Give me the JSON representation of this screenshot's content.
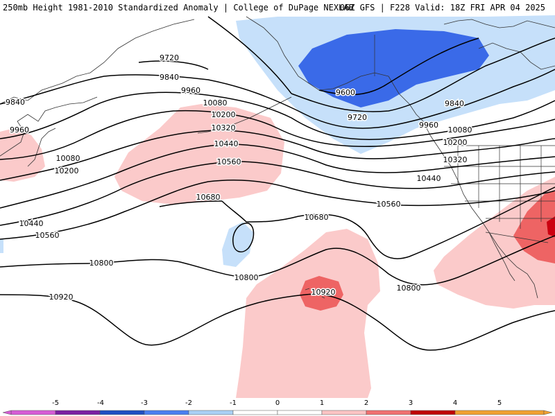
{
  "header": {
    "left": "250mb Height 1981-2010 Standardized Anomaly | College of DuPage NEXLAB",
    "right": "06Z GFS | F228 Valid: 18Z FRI APR 04 2025"
  },
  "contour_labels": [
    {
      "text": "9720"
    },
    {
      "text": "9840"
    },
    {
      "text": "9960"
    },
    {
      "text": "9840"
    },
    {
      "text": "9960"
    },
    {
      "text": "10080"
    },
    {
      "text": "10200"
    },
    {
      "text": "10320"
    },
    {
      "text": "10440"
    },
    {
      "text": "10560"
    },
    {
      "text": "10680"
    },
    {
      "text": "10440"
    },
    {
      "text": "10560"
    },
    {
      "text": "10800"
    },
    {
      "text": "10800"
    },
    {
      "text": "10920"
    },
    {
      "text": "10920"
    },
    {
      "text": "10680"
    },
    {
      "text": "10800"
    },
    {
      "text": "9600"
    },
    {
      "text": "9720"
    },
    {
      "text": "9840"
    },
    {
      "text": "9960"
    },
    {
      "text": "10080"
    },
    {
      "text": "10200"
    },
    {
      "text": "10320"
    },
    {
      "text": "10440"
    },
    {
      "text": "10560"
    },
    {
      "text": "10080"
    },
    {
      "text": "10200"
    }
  ],
  "colorbar": {
    "ticks": [
      "-5",
      "-4",
      "-3",
      "-2",
      "-1",
      "0",
      "1",
      "2",
      "3",
      "4",
      "5"
    ],
    "colors": [
      "#d65cd6",
      "#7b1fa2",
      "#1f4fc2",
      "#4a7ff0",
      "#a9d0f5",
      "#ffffff",
      "#ffffff",
      "#fbc4c4",
      "#f07070",
      "#c00000",
      "#f0a030"
    ]
  },
  "colors": {
    "strong_negative": "#3a6ae8",
    "weak_negative": "#c6e0fa",
    "weak_positive": "#fbcaca",
    "strong_positive": "#ee6464",
    "extreme_positive": "#cc0010"
  }
}
